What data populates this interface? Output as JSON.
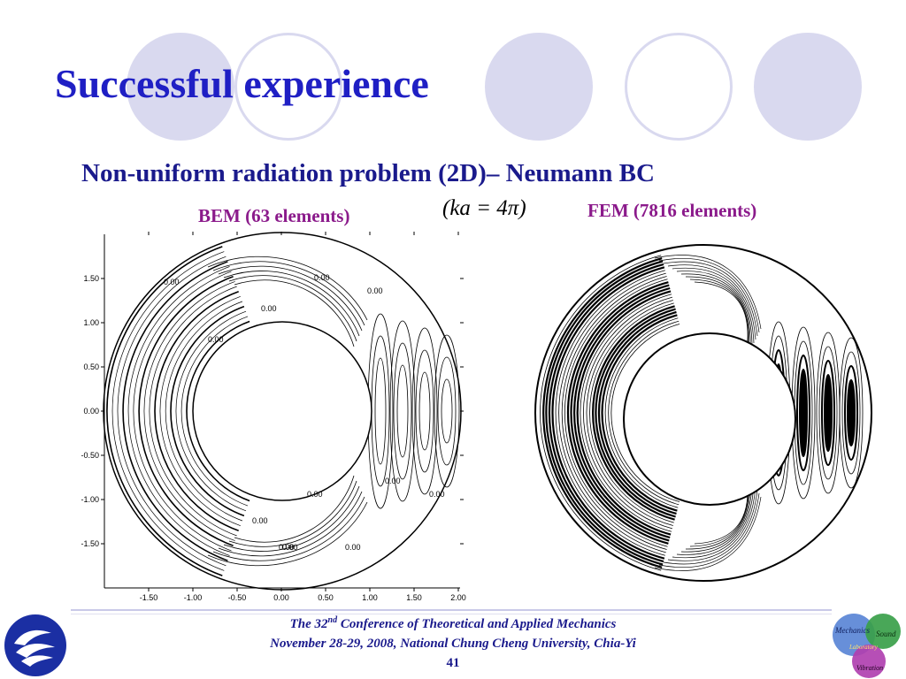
{
  "slide": {
    "title": "Successful experience",
    "subtitle": "Non-uniform radiation problem (2D)– Neumann BC",
    "formula": "(ka = 4π)",
    "bem_label": "BEM (63 elements)",
    "fem_label": "FEM (7816 elements)"
  },
  "bem_plot": {
    "y_ticks": [
      "1.50",
      "1.00",
      "0.50",
      "0.00",
      "-0.50",
      "-1.00",
      "-1.50"
    ],
    "x_ticks": [
      "-1.50",
      "-1.00",
      "-0.50",
      "0.00",
      "0.50",
      "1.00",
      "1.50",
      "2.00"
    ],
    "contour_label": "0.00"
  },
  "footer": {
    "line1_pre": "The 32",
    "line1_sup": "nd",
    "line1_post": " Conference of Theoretical and Applied Mechanics",
    "line2": "November 28-29, 2008, National Chung Cheng University, Chia-Yi",
    "page": "41",
    "logo_words": [
      "Mechanics",
      "Sound",
      "Laboratory",
      "Vibration"
    ]
  },
  "colors": {
    "title": "#1f1fc4",
    "subtitle": "#1a1a8c",
    "labels": "#8b1a8b",
    "deco": "#d9d9ef"
  }
}
